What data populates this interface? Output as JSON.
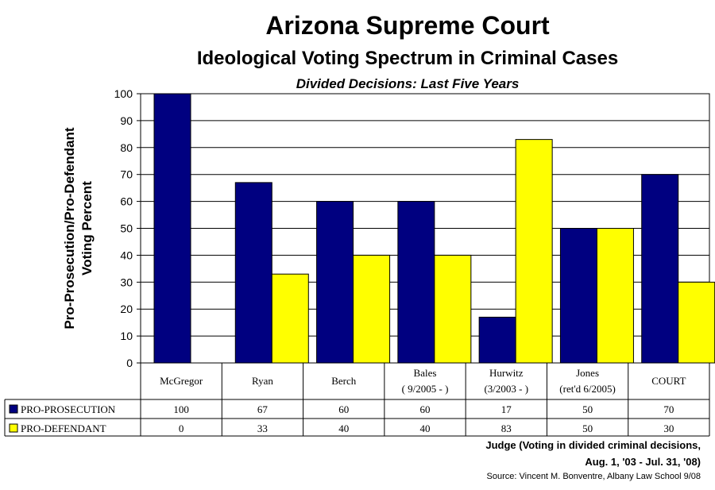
{
  "titles": {
    "main": "Arizona Supreme Court",
    "sub": "Ideological Voting Spectrum in Criminal Cases",
    "italic": "Divided Decisions: Last Five Years"
  },
  "notes": {
    "xaxis_line1": "Judge (Voting in divided criminal decisions,",
    "xaxis_line2": "Aug. 1, '03 - Jul. 31, '08)",
    "source": "Source: Vincent M. Bonventre, Albany Law School  9/08"
  },
  "colors": {
    "prosecution": "#000080",
    "defendant": "#FFFF00"
  },
  "chart_data": {
    "type": "bar",
    "title": "Arizona Supreme Court",
    "ylabel": [
      "Pro-Prosecution/Pro-Defendant",
      "Voting Percent"
    ],
    "ylim": [
      0,
      100
    ],
    "yticks": [
      0,
      10,
      20,
      30,
      40,
      50,
      60,
      70,
      80,
      90,
      100
    ],
    "grid": true,
    "categories": [
      [
        "McGregor"
      ],
      [
        "Ryan"
      ],
      [
        "Berch"
      ],
      [
        "Bales",
        "( 9/2005 - )"
      ],
      [
        "Hurwitz",
        "(3/2003 - )"
      ],
      [
        "Jones",
        "(ret'd 6/2005)"
      ],
      [
        "COURT"
      ]
    ],
    "series": [
      {
        "name": "PRO-PROSECUTION",
        "color": "#000080",
        "values": [
          100,
          67,
          60,
          60,
          17,
          50,
          70
        ]
      },
      {
        "name": "PRO-DEFENDANT",
        "color": "#FFFF00",
        "values": [
          0,
          33,
          40,
          40,
          83,
          50,
          30
        ]
      }
    ]
  }
}
